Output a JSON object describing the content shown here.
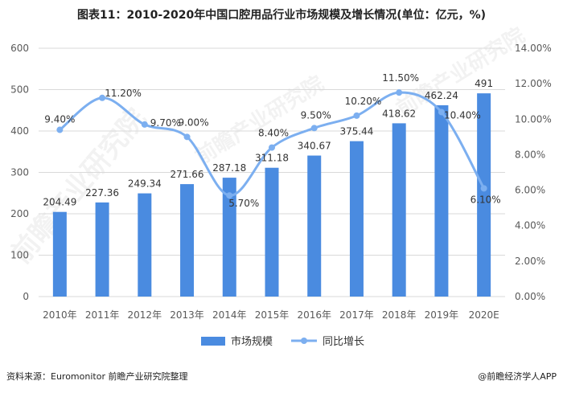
{
  "title": "图表11：2010-2020年中国口腔用品行业市场规模及增长情况(单位：亿元，%)",
  "footer": {
    "source": "资料来源：Euromonitor 前瞻产业研究院整理",
    "brand": "@前瞻经济学人APP"
  },
  "watermark": {
    "text": "前瞻产业研究院"
  },
  "colors": {
    "bar": "#4A8BE0",
    "line": "#7CAFF0",
    "grid": "#D9D9D9",
    "axis": "#595959"
  },
  "chart_data": {
    "type": "bar",
    "categories": [
      "2010年",
      "2011年",
      "2012年",
      "2013年",
      "2014年",
      "2015年",
      "2016年",
      "2017年",
      "2018年",
      "2019年",
      "2020E"
    ],
    "series": [
      {
        "name": "市场规模",
        "type": "bar",
        "axis": "left",
        "values": [
          204.49,
          227.36,
          249.34,
          271.66,
          287.18,
          311.18,
          340.67,
          375.44,
          418.62,
          462.24,
          491
        ],
        "labels": [
          "204.49",
          "227.36",
          "249.34",
          "271.66",
          "287.18",
          "311.18",
          "340.67",
          "375.44",
          "418.62",
          "462.24",
          "491"
        ]
      },
      {
        "name": "同比增长",
        "type": "line",
        "axis": "right",
        "values": [
          9.4,
          11.2,
          9.7,
          9.0,
          5.7,
          8.4,
          9.5,
          10.2,
          11.5,
          10.4,
          6.1
        ],
        "labels": [
          "9.40%",
          "11.20%",
          "9.70%",
          "9.00%",
          "5.70%",
          "8.40%",
          "9.50%",
          "10.20%",
          "11.50%",
          "10.40%",
          "6.10%"
        ]
      }
    ],
    "ylim_left": [
      0,
      600
    ],
    "yticks_left": [
      "0",
      "100",
      "200",
      "300",
      "400",
      "500",
      "600"
    ],
    "ylim_right": [
      0,
      14
    ],
    "yticks_right": [
      "0.00%",
      "2.00%",
      "4.00%",
      "6.00%",
      "8.00%",
      "10.00%",
      "12.00%",
      "14.00%"
    ],
    "grid": true,
    "legend_position": "bottom-center"
  }
}
